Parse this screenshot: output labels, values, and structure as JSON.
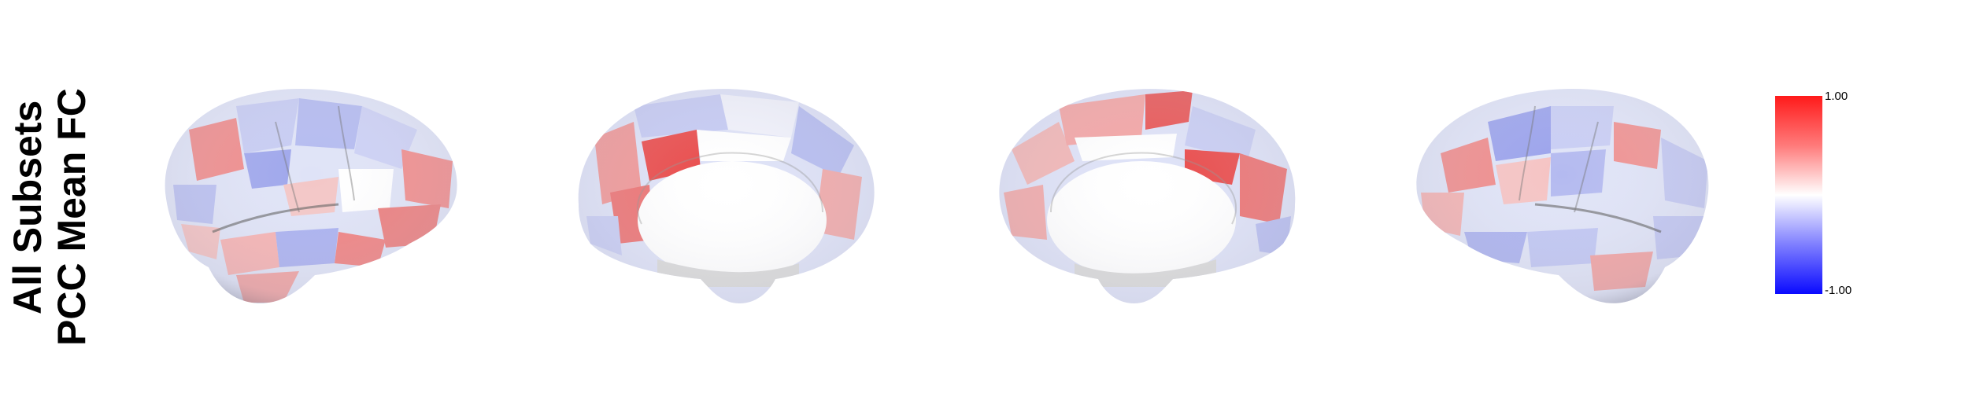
{
  "title_line1": "All Subsets",
  "title_line2": "PCC Mean FC",
  "colorbar": {
    "max_label": "1.00",
    "min_label": "-1.00",
    "colors": {
      "max": "#ff0000",
      "mid": "#ffffff",
      "min": "#0000ff"
    }
  },
  "views": [
    {
      "name": "left-lateral"
    },
    {
      "name": "left-medial"
    },
    {
      "name": "right-medial"
    },
    {
      "name": "right-lateral"
    }
  ]
}
